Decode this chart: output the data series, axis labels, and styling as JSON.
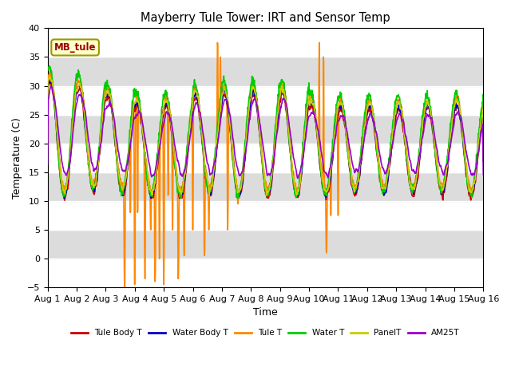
{
  "title": "Mayberry Tule Tower: IRT and Sensor Temp",
  "xlabel": "Time",
  "ylabel": "Temperature (C)",
  "ylim": [
    -5,
    40
  ],
  "xlim": [
    0,
    15
  ],
  "xtick_labels": [
    "Aug 1",
    "Aug 2",
    "Aug 3",
    "Aug 4",
    "Aug 5",
    "Aug 6",
    "Aug 7",
    "Aug 8",
    "Aug 9",
    "Aug 10",
    "Aug 11",
    "Aug 12",
    "Aug 13",
    "Aug 14",
    "Aug 15",
    "Aug 16"
  ],
  "annotation_text": "MB_tule",
  "band_color": "#dcdcdc",
  "plot_bg": "#f8f8f8",
  "legend_items": [
    {
      "label": "Tule Body T",
      "color": "#cc0000"
    },
    {
      "label": "Water Body T",
      "color": "#0000cc"
    },
    {
      "label": "Tule T",
      "color": "#ff8800"
    },
    {
      "label": "Water T",
      "color": "#00cc00"
    },
    {
      "label": "PanelT",
      "color": "#cccc00"
    },
    {
      "label": "AM25T",
      "color": "#9900cc"
    }
  ]
}
